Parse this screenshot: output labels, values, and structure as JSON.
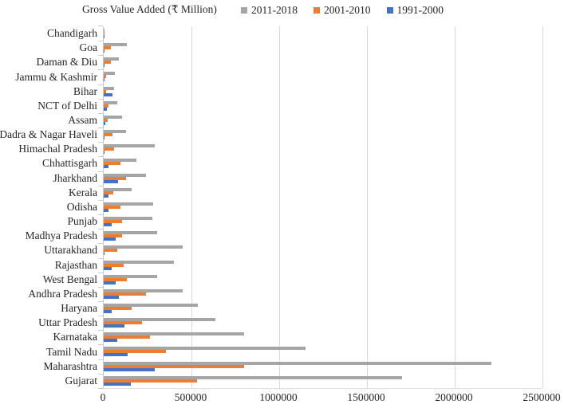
{
  "header": {
    "title": "Gross Value Added (₹ Million)"
  },
  "colors": {
    "series_gray": "#A5A5A5",
    "series_orange": "#ED7D31",
    "series_blue": "#4472C4",
    "gridline": "#D9D9D9",
    "text": "#262626"
  },
  "chart_data": {
    "type": "bar",
    "orientation": "horizontal",
    "title": "Gross Value Added (₹ Million)",
    "legend_position": "top",
    "grid": "vertical",
    "xlim": [
      0,
      2500000
    ],
    "x_ticks": [
      0,
      500000,
      1000000,
      1500000,
      2000000,
      2500000
    ],
    "x_tick_labels": [
      "0",
      "500000",
      "1000000",
      "1500000",
      "2000000",
      "2500000"
    ],
    "categories": [
      "Chandigarh",
      "Goa",
      "Daman & Diu",
      "Jammu & Kashmir",
      "Bihar",
      "NCT of Delhi",
      "Assam",
      "Dadra & Nagar Haveli",
      "Himachal Pradesh",
      "Chhattisgarh",
      "Jharkhand",
      "Kerala",
      "Odisha",
      "Punjab",
      "Madhya Pradesh",
      "Uttarakhand",
      "Rajasthan",
      "West Bengal",
      "Andhra Pradesh",
      "Haryana",
      "Uttar Pradesh",
      "Karnataka",
      "Tamil Nadu",
      "Maharashtra",
      "Gujarat"
    ],
    "series": [
      {
        "name": "2011-2018",
        "color": "#A5A5A5",
        "values": [
          5000,
          130000,
          85000,
          65000,
          60000,
          76000,
          105000,
          125000,
          290000,
          185000,
          240000,
          160000,
          280000,
          275000,
          305000,
          450000,
          400000,
          305000,
          450000,
          535000,
          635000,
          800000,
          1150000,
          2210000,
          1700000
        ]
      },
      {
        "name": "2001-2010",
        "color": "#ED7D31",
        "values": [
          2000,
          40000,
          40000,
          12000,
          12000,
          27000,
          22000,
          50000,
          58000,
          95000,
          125000,
          55000,
          95000,
          105000,
          105000,
          75000,
          115000,
          130000,
          240000,
          160000,
          220000,
          265000,
          355000,
          800000,
          530000
        ]
      },
      {
        "name": "1991-2000",
        "color": "#4472C4",
        "values": [
          1000,
          6000,
          4000,
          2000,
          50000,
          18000,
          8000,
          3000,
          4000,
          25000,
          80000,
          25000,
          27000,
          45000,
          70000,
          5000,
          45000,
          70000,
          85000,
          45000,
          120000,
          75000,
          135000,
          290000,
          155000
        ]
      }
    ]
  }
}
